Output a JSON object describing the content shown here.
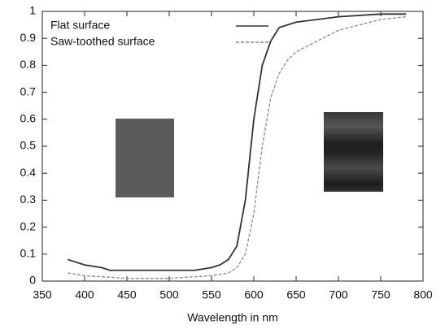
{
  "chart_data": {
    "type": "line",
    "xlabel": "Wavelength in nm",
    "xlim": [
      350,
      800
    ],
    "xticks": [
      350,
      400,
      450,
      500,
      550,
      600,
      650,
      700,
      750,
      800
    ],
    "ylim": [
      0,
      1
    ],
    "yticks": [
      0,
      0.1,
      0.2,
      0.3,
      0.4,
      0.5,
      0.6,
      0.7,
      0.8,
      0.9,
      1
    ],
    "grid": false,
    "legend": "top-left",
    "series": [
      {
        "name": "Flat surface",
        "color": "#333333",
        "style": "solid",
        "x": [
          380,
          400,
          420,
          430,
          450,
          500,
          530,
          550,
          560,
          570,
          580,
          590,
          600,
          610,
          620,
          630,
          650,
          700,
          750,
          780
        ],
        "values": [
          0.08,
          0.06,
          0.05,
          0.04,
          0.04,
          0.04,
          0.04,
          0.05,
          0.06,
          0.08,
          0.13,
          0.3,
          0.6,
          0.8,
          0.89,
          0.94,
          0.96,
          0.98,
          0.99,
          0.99
        ]
      },
      {
        "name": "Saw-toothed surface",
        "color": "#8a8a8a",
        "style": "dashed",
        "x": [
          380,
          400,
          450,
          500,
          550,
          570,
          580,
          590,
          600,
          610,
          620,
          630,
          640,
          650,
          700,
          750,
          780
        ],
        "values": [
          0.03,
          0.02,
          0.01,
          0.01,
          0.02,
          0.03,
          0.05,
          0.1,
          0.25,
          0.5,
          0.68,
          0.77,
          0.82,
          0.85,
          0.93,
          0.97,
          0.98
        ]
      }
    ]
  }
}
